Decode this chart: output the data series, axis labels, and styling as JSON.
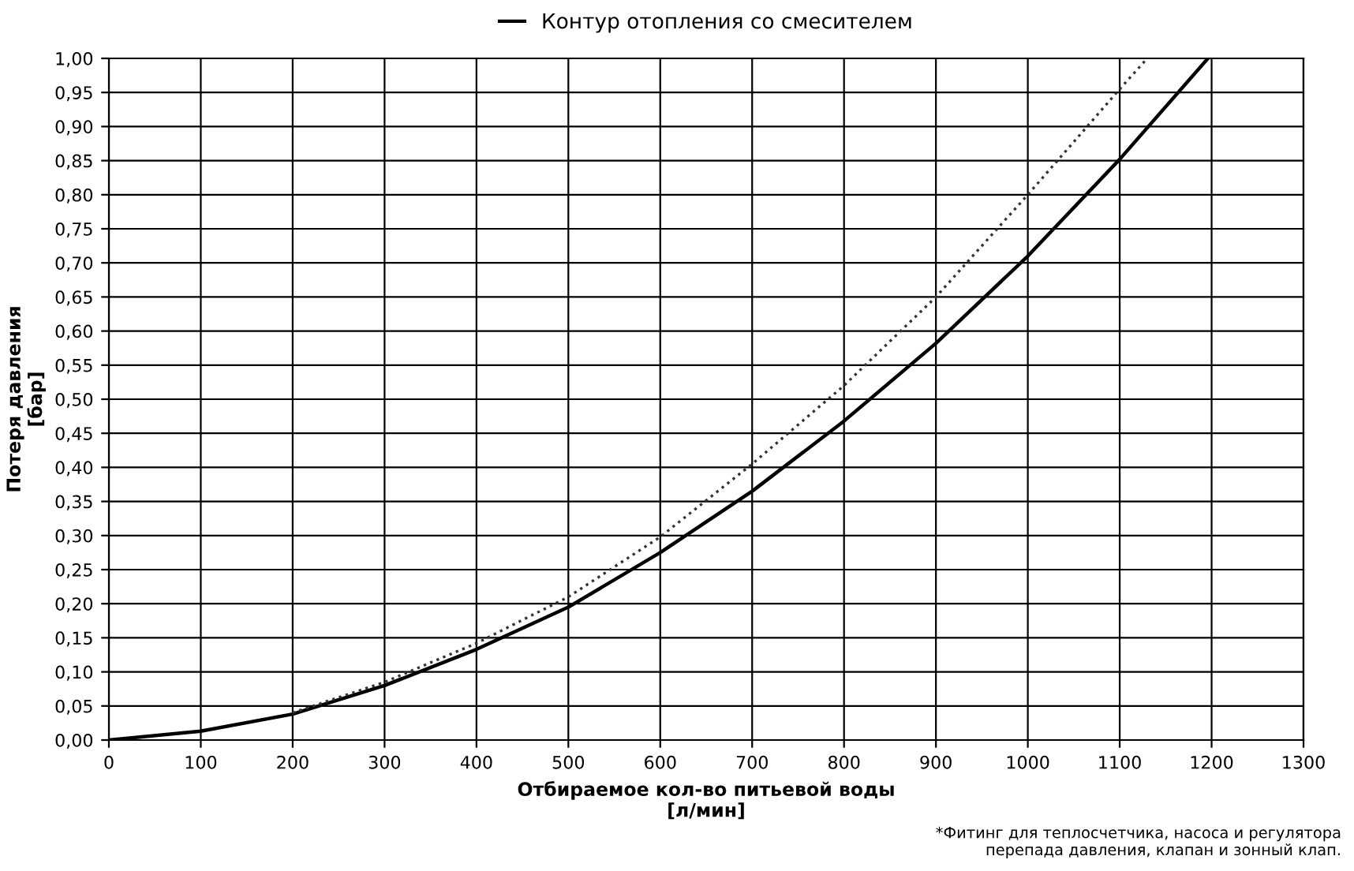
{
  "chart_data": {
    "type": "line",
    "xlabel": "Отбираемое кол-во питьевой воды\n[л/мин]",
    "ylabel": "Потеря давления\n[бар]",
    "annotations": [
      "*Фитинг для теплосчетчика, насоса и регулятора\nперепада давления, клапан и зонный клап."
    ],
    "series": [
      {
        "name": "Контур отопления со смесителем",
        "color": "#000000",
        "line_style": "solid",
        "x": [
          0,
          100,
          200,
          300,
          400,
          500,
          600,
          700,
          800,
          900,
          1000,
          1100,
          1196
        ],
        "values": [
          0,
          0.013,
          0.038,
          0.08,
          0.133,
          0.195,
          0.275,
          0.365,
          0.468,
          0.582,
          0.71,
          0.852,
          1.0
        ]
      },
      {
        "color": "#333333",
        "line_style": "dotted",
        "x": [
          200,
          300,
          400,
          500,
          600,
          700,
          800,
          900,
          1000,
          1100,
          1130
        ],
        "values": [
          0.04,
          0.085,
          0.142,
          0.21,
          0.298,
          0.405,
          0.52,
          0.65,
          0.8,
          0.955,
          1.0
        ]
      }
    ],
    "xlim": [
      0,
      1300
    ],
    "xticks": [
      0,
      100,
      200,
      300,
      400,
      500,
      600,
      700,
      800,
      900,
      1000,
      1100,
      1200,
      1300
    ],
    "ylim": [
      0,
      1.0
    ],
    "yticks": [
      {
        "value": 0,
        "label": "0,00"
      },
      {
        "value": 0.05,
        "label": "0,05"
      },
      {
        "value": 0.1,
        "label": "0,10"
      },
      {
        "value": 0.15,
        "label": "0,15"
      },
      {
        "value": 0.2,
        "label": "0,20"
      },
      {
        "value": 0.25,
        "label": "0,25"
      },
      {
        "value": 0.3,
        "label": "0,30"
      },
      {
        "value": 0.35,
        "label": "0,35"
      },
      {
        "value": 0.4,
        "label": "0,40"
      },
      {
        "value": 0.45,
        "label": "0,45"
      },
      {
        "value": 0.5,
        "label": "0,50"
      },
      {
        "value": 0.55,
        "label": "0,55"
      },
      {
        "value": 0.6,
        "label": "0,60"
      },
      {
        "value": 0.65,
        "label": "0,65"
      },
      {
        "value": 0.7,
        "label": "0,70"
      },
      {
        "value": 0.75,
        "label": "0,75"
      },
      {
        "value": 0.8,
        "label": "0,80"
      },
      {
        "value": 0.85,
        "label": "0,85"
      },
      {
        "value": 0.9,
        "label": "0,90"
      },
      {
        "value": 0.95,
        "label": "0,95"
      },
      {
        "value": 1.0,
        "label": "1,00"
      }
    ],
    "grid": true,
    "legend": "top"
  }
}
